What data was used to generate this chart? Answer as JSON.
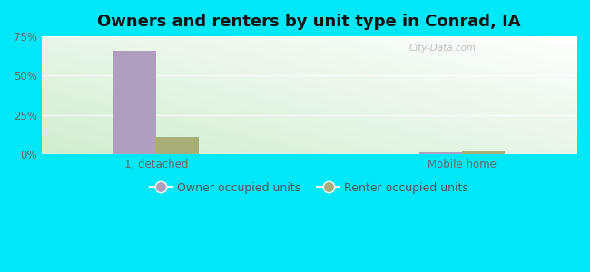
{
  "title": "Owners and renters by unit type in Conrad, IA",
  "categories": [
    "1, detached",
    "Mobile home"
  ],
  "owner_values": [
    66.0,
    1.5
  ],
  "renter_values": [
    11.0,
    2.0
  ],
  "owner_color": "#b09ec0",
  "renter_color": "#a8ae78",
  "outer_bg": "#00e8f8",
  "ylim": [
    0,
    75
  ],
  "yticks": [
    0,
    25,
    50,
    75
  ],
  "ytick_labels": [
    "0%",
    "25%",
    "50%",
    "75%"
  ],
  "legend_owner": "Owner occupied units",
  "legend_renter": "Renter occupied units",
  "bar_width": 0.28,
  "title_fontsize": 13,
  "tick_fontsize": 8.5,
  "legend_fontsize": 9,
  "watermark": "City-Data.com",
  "group_positions": [
    0.75,
    2.75
  ],
  "xlim": [
    0.0,
    3.5
  ]
}
